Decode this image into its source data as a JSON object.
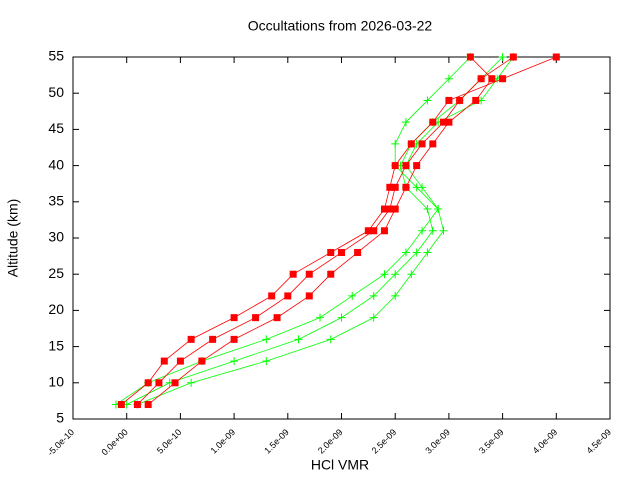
{
  "chart_data": {
    "type": "profile",
    "title": "Occultations from 2026-03-22",
    "x_label": "HCl VMR",
    "y_label": "Altitude (km)",
    "xlim": [
      -5e-10,
      4.5e-09
    ],
    "xticks": [
      {
        "value": -5e-10,
        "label": "-5.0e-10"
      },
      {
        "value": 0,
        "label": "0.0e+00"
      },
      {
        "value": 5e-10,
        "label": "5.0e-10"
      },
      {
        "value": 1e-09,
        "label": "1.0e-09"
      },
      {
        "value": 1.5e-09,
        "label": "1.5e-09"
      },
      {
        "value": 2e-09,
        "label": "2.0e-09"
      },
      {
        "value": 2.5e-09,
        "label": "2.5e-09"
      },
      {
        "value": 3e-09,
        "label": "3.0e-09"
      },
      {
        "value": 3.5e-09,
        "label": "3.5e-09"
      },
      {
        "value": 4e-09,
        "label": "4.0e-09"
      },
      {
        "value": 4.5e-09,
        "label": "4.5e-09"
      }
    ],
    "ylim": [
      5,
      55
    ],
    "yticks": [
      5,
      10,
      15,
      20,
      25,
      30,
      35,
      40,
      45,
      50,
      55
    ],
    "series": [
      {
        "color": "#00ff00",
        "marker": "plus",
        "x": [
          0.0,
          4e-10,
          1e-09,
          1.6e-09,
          2e-09,
          2.3e-09,
          2.5e-09,
          2.7e-09,
          2.85e-09,
          2.8e-09,
          2.6e-09,
          2.55e-09,
          2.65e-09,
          2.85e-09,
          3.1e-09,
          3.3e-09,
          3.5e-09
        ],
        "values": [
          7,
          10,
          13,
          16,
          19,
          22,
          25,
          28,
          31,
          34,
          37,
          40,
          43,
          46,
          49,
          52,
          55
        ]
      },
      {
        "color": "#00ff00",
        "marker": "plus",
        "x": [
          -1e-10,
          2e-10,
          7e-10,
          1.3e-09,
          1.8e-09,
          2.1e-09,
          2.4e-09,
          2.6e-09,
          2.75e-09,
          2.9e-09,
          2.7e-09,
          2.5e-09,
          2.5e-09,
          2.6e-09,
          2.8e-09,
          3e-09,
          3.2e-09
        ],
        "values": [
          7,
          10,
          13,
          16,
          19,
          22,
          25,
          28,
          31,
          34,
          37,
          40,
          43,
          46,
          49,
          52,
          55
        ]
      },
      {
        "color": "#00ff00",
        "marker": "plus",
        "x": [
          1e-10,
          6e-10,
          1.3e-09,
          1.9e-09,
          2.3e-09,
          2.5e-09,
          2.65e-09,
          2.8e-09,
          2.95e-09,
          2.9e-09,
          2.75e-09,
          2.6e-09,
          2.7e-09,
          2.9e-09,
          3.3e-09,
          3.45e-09,
          3.6e-09
        ],
        "values": [
          7,
          10,
          13,
          16,
          19,
          22,
          25,
          28,
          31,
          34,
          37,
          40,
          43,
          46,
          49,
          52,
          55
        ]
      },
      {
        "color": "#ff0000",
        "marker": "square",
        "x": [
          1e-10,
          3e-10,
          5e-10,
          8e-10,
          1.2e-09,
          1.5e-09,
          1.7e-09,
          2e-09,
          2.3e-09,
          2.45e-09,
          2.5e-09,
          2.6e-09,
          2.75e-09,
          2.95e-09,
          3.1e-09,
          3.3e-09,
          3.6e-09
        ],
        "values": [
          7,
          10,
          13,
          16,
          19,
          22,
          25,
          28,
          31,
          34,
          37,
          40,
          43,
          46,
          49,
          52,
          55
        ]
      },
      {
        "color": "#ff0000",
        "marker": "square",
        "x": [
          -5e-11,
          2e-10,
          3.5e-10,
          6e-10,
          1e-09,
          1.35e-09,
          1.55e-09,
          1.9e-09,
          2.25e-09,
          2.4e-09,
          2.45e-09,
          2.5e-09,
          2.65e-09,
          2.85e-09,
          3e-09,
          3.5e-09,
          4e-09
        ],
        "values": [
          7,
          10,
          13,
          16,
          19,
          22,
          25,
          28,
          31,
          34,
          37,
          40,
          43,
          46,
          49,
          52,
          55
        ]
      },
      {
        "color": "#ff0000",
        "marker": "square",
        "x": [
          2e-10,
          4.5e-10,
          7e-10,
          1e-09,
          1.4e-09,
          1.7e-09,
          1.9e-09,
          2.15e-09,
          2.4e-09,
          2.5e-09,
          2.6e-09,
          2.7e-09,
          2.85e-09,
          3e-09,
          3.25e-09,
          3.4e-09,
          3.2e-09
        ],
        "values": [
          7,
          10,
          13,
          16,
          19,
          22,
          25,
          28,
          31,
          34,
          37,
          40,
          43,
          46,
          49,
          52,
          55
        ]
      }
    ]
  }
}
